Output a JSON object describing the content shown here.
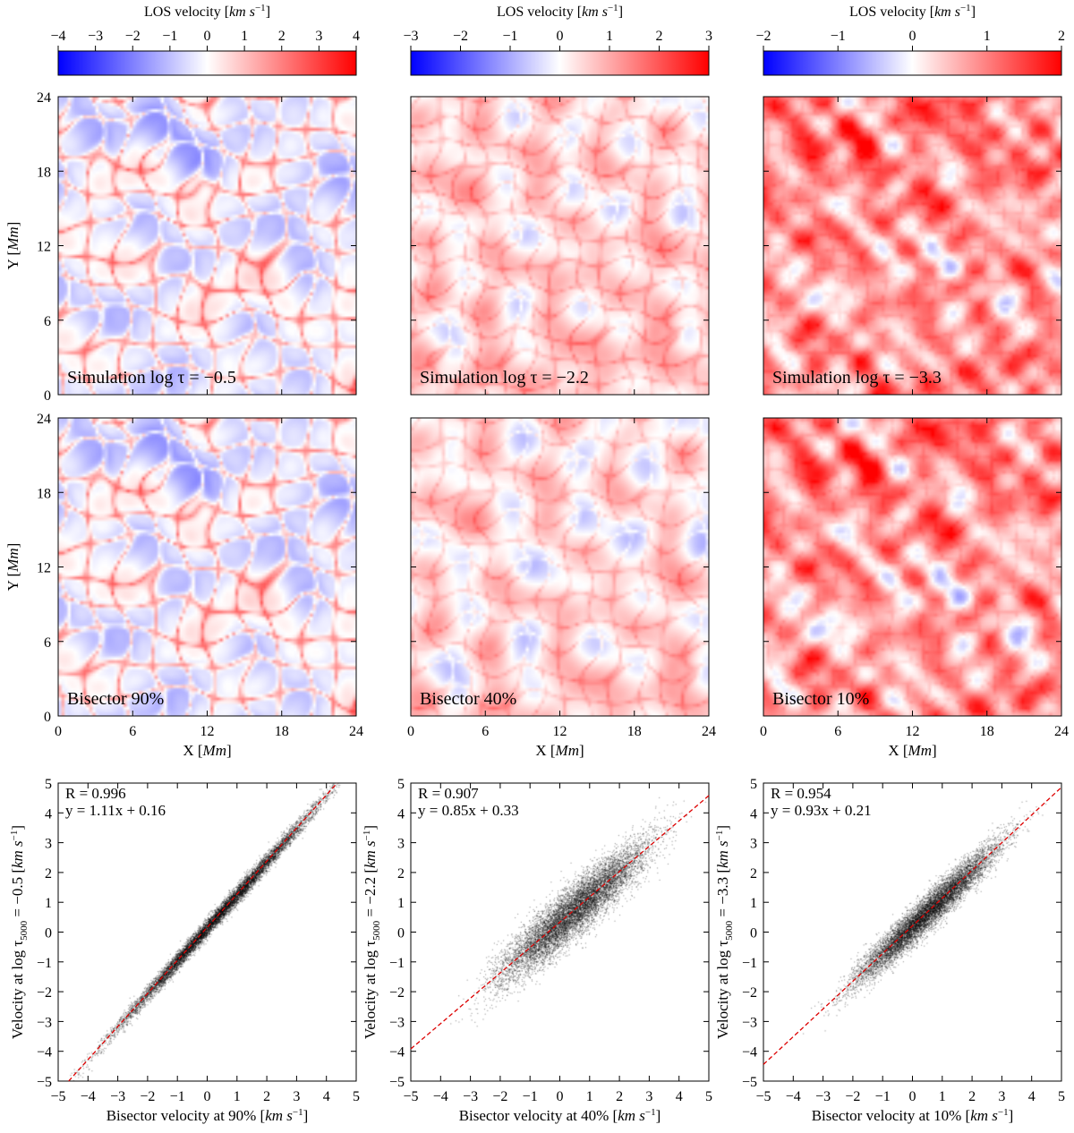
{
  "figure": {
    "cbar_label_prefix": "LOS velocity ",
    "cbar_label_units": "km s",
    "cbar_label_exp": "−1",
    "y_label_prefix": "Y ",
    "x_label_prefix": "X ",
    "axis_unit_mm": "Mm",
    "scatter_xlabel_suffix": "[km s",
    "scatter_ylabel_pre": "Velocity at log τ",
    "scatter_ylabel_sub": "5000",
    "unit_exp": "−1"
  },
  "colors": {
    "neg": "#0000ff",
    "mid": "#ffffff",
    "pos": "#ff0000",
    "fit_line": "#dd0000",
    "points": "#000000"
  },
  "chart_data": [
    {
      "type": "colorbar",
      "columns": [
        {
          "min": -4,
          "max": 4,
          "ticks": [
            -4,
            -3,
            -2,
            -1,
            0,
            1,
            2,
            3,
            4
          ],
          "tick_labels": [
            "−4",
            "−3",
            "−2",
            "−1",
            "0",
            "1",
            "2",
            "3",
            "4"
          ]
        },
        {
          "min": -3,
          "max": 3,
          "ticks": [
            -3,
            -2,
            -1,
            0,
            1,
            2,
            3
          ],
          "tick_labels": [
            "−3",
            "−2",
            "−1",
            "0",
            "1",
            "2",
            "3"
          ]
        },
        {
          "min": -2,
          "max": 2,
          "ticks": [
            -2,
            -1,
            0,
            1,
            2
          ],
          "tick_labels": [
            "−2",
            "−1",
            "0",
            "1",
            "2"
          ]
        }
      ]
    },
    {
      "type": "heatmap",
      "x_range_Mm": [
        0,
        24
      ],
      "y_range_Mm": [
        0,
        24
      ],
      "ticks": [
        0,
        6,
        12,
        18,
        24
      ],
      "tick_labels": [
        "0",
        "6",
        "12",
        "18",
        "24"
      ],
      "panels": [
        {
          "row": 0,
          "col": 0,
          "label": "Simulation log τ = −0.5",
          "mean": -0.2,
          "spread": 0.7,
          "lanes": 2.6,
          "scale": 2.3
        },
        {
          "row": 0,
          "col": 1,
          "label": "Simulation log τ = −2.2",
          "mean": 0.55,
          "spread": 0.55,
          "lanes": 0.9,
          "scale": 3.0
        },
        {
          "row": 0,
          "col": 2,
          "label": "Simulation log τ = −3.3",
          "mean": 0.8,
          "spread": 0.6,
          "lanes": 0.3,
          "scale": 4.2
        },
        {
          "row": 1,
          "col": 0,
          "label": "Bisector 90%",
          "mean": -0.2,
          "spread": 0.7,
          "lanes": 2.6,
          "scale": 2.3
        },
        {
          "row": 1,
          "col": 1,
          "label": "Bisector 40%",
          "mean": 0.45,
          "spread": 0.6,
          "lanes": 0.8,
          "scale": 2.8
        },
        {
          "row": 1,
          "col": 2,
          "label": "Bisector 10%",
          "mean": 0.75,
          "spread": 0.65,
          "lanes": 0.3,
          "scale": 4.0
        }
      ]
    },
    {
      "type": "scatter",
      "xlim": [
        -5,
        5
      ],
      "ylim": [
        -5,
        5
      ],
      "ticks": [
        -5,
        -4,
        -3,
        -2,
        -1,
        0,
        1,
        2,
        3,
        4,
        5
      ],
      "tick_labels": [
        "−5",
        "−4",
        "−3",
        "−2",
        "−1",
        "0",
        "1",
        "2",
        "3",
        "4",
        "5"
      ],
      "panels": [
        {
          "xlabel": "Bisector velocity at 90%",
          "ylabel_value": " = −0.5",
          "R_text": "R = 0.996",
          "fit_text": "y = 1.11x + 0.16",
          "slope": 1.11,
          "intercept": 0.16,
          "x_range": [
            -2.6,
            3.3
          ],
          "noise": 0.15
        },
        {
          "xlabel": "Bisector velocity at 40%",
          "ylabel_value": " = −2.2",
          "R_text": "R = 0.907",
          "fit_text": "y = 0.85x + 0.33",
          "slope": 0.85,
          "intercept": 0.33,
          "x_range": [
            -1.7,
            2.6
          ],
          "noise": 0.45
        },
        {
          "xlabel": "Bisector velocity at 10%",
          "ylabel_value": " = −3.3",
          "R_text": "R = 0.954",
          "fit_text": "y = 0.93x + 0.21",
          "slope": 0.93,
          "intercept": 0.21,
          "x_range": [
            -1.6,
            2.5
          ],
          "noise": 0.3
        }
      ]
    }
  ]
}
